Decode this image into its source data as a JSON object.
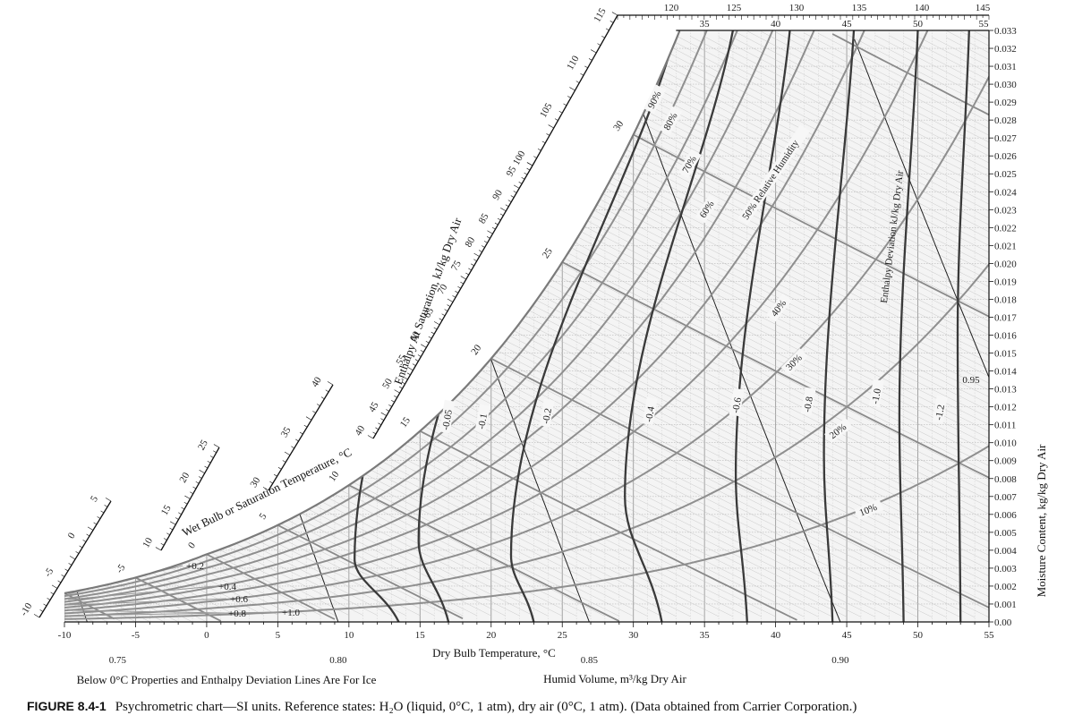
{
  "caption": {
    "figure_label": "FIGURE 8.4-1",
    "text": "Psychrometric chart—SI units. Reference states: H₂O (liquid, 0°C, 1 atm), dry air (0°C, 1 atm). (Data obtained from Carrier Corporation.)"
  },
  "chart_data": {
    "type": "psychrometric",
    "xlabel": "Dry Bulb Temperature, °C",
    "ylabel": "Moisture Content, kg/kg Dry Air",
    "xlim": [
      -10,
      55
    ],
    "ylim": [
      0,
      0.033
    ],
    "x_ticks": [
      "-10",
      "-5",
      "0",
      "5",
      "10",
      "15",
      "20",
      "25",
      "30",
      "35",
      "40",
      "45",
      "50",
      "55"
    ],
    "y_ticks": [
      "0.00",
      "0.001",
      "0.002",
      "0.003",
      "0.004",
      "0.005",
      "0.006",
      "0.007",
      "0.008",
      "0.009",
      "0.010",
      "0.011",
      "0.012",
      "0.013",
      "0.014",
      "0.015",
      "0.016",
      "0.017",
      "0.018",
      "0.019",
      "0.020",
      "0.021",
      "0.022",
      "0.023",
      "0.024",
      "0.025",
      "0.026",
      "0.027",
      "0.028",
      "0.029",
      "0.030",
      "0.031",
      "0.032",
      "0.033"
    ],
    "top_wetbulb_ticks": [
      "35",
      "40",
      "45",
      "50",
      "55"
    ],
    "top_enthalpy_ticks": [
      "120",
      "125",
      "130",
      "135",
      "140",
      "145"
    ],
    "enthalpy_scale": {
      "title": "Enthalpy At Saturation, kJ/kg Dry Air",
      "labels": [
        "-10",
        "-5",
        "0",
        "5",
        "10",
        "15",
        "20",
        "25",
        "30",
        "35",
        "40",
        "40",
        "45",
        "50",
        "55",
        "60",
        "65",
        "70",
        "75",
        "80",
        "85",
        "90",
        "95",
        "100",
        "105",
        "110",
        "115"
      ]
    },
    "wet_bulb_scale": {
      "title": "Wet Bulb or Saturation Temperature, °C",
      "labels": [
        {
          "t": -5,
          "label": "-5"
        },
        {
          "t": 0,
          "label": "0"
        },
        {
          "t": 5,
          "label": "5"
        },
        {
          "t": 10,
          "label": "10"
        },
        {
          "t": 15,
          "label": "15"
        },
        {
          "t": 20,
          "label": "20"
        },
        {
          "t": 25,
          "label": "25"
        },
        {
          "t": 30,
          "label": "30"
        }
      ]
    },
    "relative_humidity": [
      {
        "rh": 90,
        "label": "90%"
      },
      {
        "rh": 80,
        "label": "80%"
      },
      {
        "rh": 70,
        "label": "70%"
      },
      {
        "rh": 60,
        "label": "60%"
      },
      {
        "rh": 50,
        "label": "50% Relative Humidity"
      },
      {
        "rh": 40,
        "label": "40%"
      },
      {
        "rh": 30,
        "label": "30%"
      },
      {
        "rh": 20,
        "label": "20%"
      },
      {
        "rh": 10,
        "label": "10%"
      }
    ],
    "humid_volume": {
      "title": "Humid Volume, m³/kg Dry Air",
      "lines": [
        {
          "v": 0.75,
          "label": "0.75"
        },
        {
          "v": 0.8,
          "label": "0.80"
        },
        {
          "v": 0.85,
          "label": "0.85"
        },
        {
          "v": 0.9,
          "label": "0.90"
        },
        {
          "v": 0.95,
          "label": "0.95"
        }
      ]
    },
    "enthalpy_deviation": {
      "title": "Enthalpy Deviation kJ/kg Dry Air",
      "curves": [
        {
          "x_base": 13.5,
          "x_min": 10.4,
          "w_min": 0.0035,
          "x_top": 22.5,
          "label": "-0.05"
        },
        {
          "x_base": 17,
          "x_min": 14.9,
          "w_min": 0.0045,
          "x_top": 27.5,
          "label": "-0.1"
        },
        {
          "x_base": 23,
          "x_min": 21.4,
          "w_min": 0.0037,
          "x_top": 33,
          "label": "-0.2"
        },
        {
          "x_base": 32,
          "x_min": 29.4,
          "w_min": 0.007,
          "x_top": 37,
          "label": "-0.4"
        },
        {
          "x_base": 38,
          "x_min": 37.2,
          "w_min": 0.0083,
          "x_top": 41,
          "label": "-0.6"
        },
        {
          "x_base": 44,
          "x_min": 43.4,
          "w_min": 0.0093,
          "x_top": 45.5,
          "label": "-0.8"
        },
        {
          "x_base": 49,
          "x_min": 48.7,
          "w_min": 0.0115,
          "x_top": 50,
          "label": "-1.0"
        },
        {
          "x_base": 53,
          "x_min": 52.8,
          "w_min": 0.016,
          "x_top": 53.6,
          "label": "-1.2"
        }
      ]
    },
    "ice_deviation": {
      "labels": [
        "+0.2",
        "+0.4",
        "+0.6",
        "+0.8",
        "+1.0"
      ]
    },
    "notes": [
      "Below 0°C Properties and Enthalpy Deviation Lines Are For Ice"
    ]
  }
}
